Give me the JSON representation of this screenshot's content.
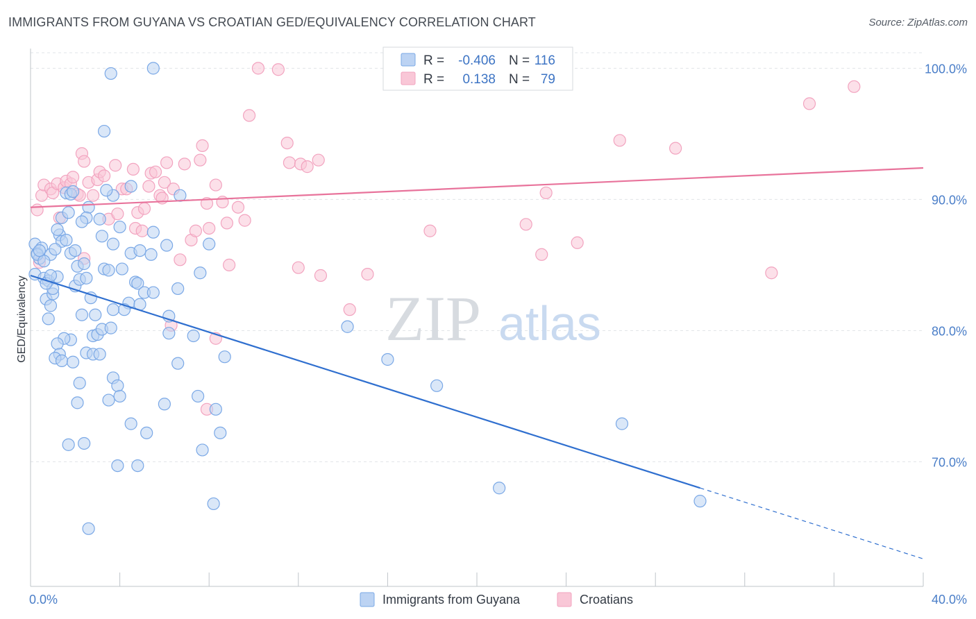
{
  "header": {
    "title": "IMMIGRANTS FROM GUYANA VS CROATIAN GED/EQUIVALENCY CORRELATION CHART",
    "source": "Source: ZipAtlas.com"
  },
  "watermark": {
    "zip": "ZIP",
    "atlas": "atlas"
  },
  "legend_box": {
    "rows": [
      {
        "r_label": "R =",
        "r_value": "-0.406",
        "n_label": "N =",
        "n_value": "116"
      },
      {
        "r_label": "R =",
        "r_value": "0.138",
        "n_label": "N =",
        "n_value": "79"
      }
    ]
  },
  "bottom_legend": {
    "items": [
      {
        "label": "Immigrants from Guyana"
      },
      {
        "label": "Croatians"
      }
    ]
  },
  "chart_data": {
    "type": "scatter",
    "title": "IMMIGRANTS FROM GUYANA VS CROATIAN GED/EQUIVALENCY CORRELATION CHART",
    "xlabel": "",
    "ylabel": "GED/Equivalency",
    "xlim": [
      0,
      40
    ],
    "ylim": [
      60.5,
      101.5
    ],
    "x_ticks": [
      "0.0%",
      "40.0%"
    ],
    "y_ticks": [
      {
        "value": 100,
        "label": "100.0%"
      },
      {
        "value": 90,
        "label": "90.0%"
      },
      {
        "value": 80,
        "label": "80.0%"
      },
      {
        "value": 70,
        "label": "70.0%"
      }
    ],
    "grid": true,
    "colors": {
      "series1": "#7aa8e6",
      "series2": "#f2a3bf",
      "trend1": "#2f6fcf",
      "trend2": "#e8739b"
    },
    "series": [
      {
        "name": "Immigrants from Guyana",
        "R": -0.406,
        "N": 116,
        "trend": {
          "x": [
            0,
            30
          ],
          "y": [
            84.2,
            68.0
          ],
          "dashed_to": [
            40,
            62.6
          ]
        },
        "points": [
          [
            0.2,
            86.6
          ],
          [
            0.3,
            85.9
          ],
          [
            0.2,
            84.3
          ],
          [
            0.5,
            86.3
          ],
          [
            0.4,
            85.5
          ],
          [
            0.6,
            84.0
          ],
          [
            0.8,
            83.8
          ],
          [
            0.3,
            85.8
          ],
          [
            0.7,
            82.4
          ],
          [
            0.9,
            81.9
          ],
          [
            0.8,
            80.9
          ],
          [
            1.0,
            82.8
          ],
          [
            1.2,
            84.1
          ],
          [
            1.0,
            83.2
          ],
          [
            0.7,
            83.6
          ],
          [
            0.9,
            85.8
          ],
          [
            1.3,
            87.3
          ],
          [
            1.4,
            86.8
          ],
          [
            1.2,
            87.7
          ],
          [
            1.4,
            88.6
          ],
          [
            1.6,
            90.5
          ],
          [
            1.8,
            90.4
          ],
          [
            1.9,
            90.6
          ],
          [
            1.7,
            89.0
          ],
          [
            1.6,
            86.9
          ],
          [
            1.8,
            85.9
          ],
          [
            2.1,
            84.9
          ],
          [
            2.4,
            85.1
          ],
          [
            2.0,
            83.4
          ],
          [
            2.2,
            83.9
          ],
          [
            2.5,
            84.0
          ],
          [
            2.7,
            82.5
          ],
          [
            2.9,
            81.2
          ],
          [
            2.3,
            81.2
          ],
          [
            2.8,
            79.6
          ],
          [
            3.0,
            79.7
          ],
          [
            3.2,
            80.1
          ],
          [
            2.5,
            78.3
          ],
          [
            2.8,
            78.2
          ],
          [
            1.8,
            79.3
          ],
          [
            1.5,
            79.4
          ],
          [
            1.2,
            79.0
          ],
          [
            1.3,
            78.2
          ],
          [
            1.1,
            77.9
          ],
          [
            1.4,
            77.7
          ],
          [
            1.9,
            77.6
          ],
          [
            2.2,
            76.0
          ],
          [
            2.1,
            74.5
          ],
          [
            1.7,
            71.3
          ],
          [
            2.4,
            71.4
          ],
          [
            3.1,
            78.2
          ],
          [
            3.7,
            76.4
          ],
          [
            3.9,
            75.8
          ],
          [
            3.5,
            74.7
          ],
          [
            4.0,
            75.0
          ],
          [
            4.5,
            72.9
          ],
          [
            5.2,
            72.2
          ],
          [
            3.9,
            69.7
          ],
          [
            4.8,
            69.7
          ],
          [
            2.6,
            64.9
          ],
          [
            3.6,
            99.6
          ],
          [
            5.5,
            100.0
          ],
          [
            3.3,
            95.2
          ],
          [
            4.5,
            91.0
          ],
          [
            3.7,
            90.3
          ],
          [
            3.4,
            90.7
          ],
          [
            2.6,
            89.4
          ],
          [
            2.5,
            88.6
          ],
          [
            3.1,
            88.5
          ],
          [
            4.0,
            87.9
          ],
          [
            3.2,
            87.2
          ],
          [
            3.7,
            86.6
          ],
          [
            4.5,
            85.9
          ],
          [
            4.9,
            86.1
          ],
          [
            5.4,
            85.8
          ],
          [
            5.5,
            87.5
          ],
          [
            6.1,
            86.5
          ],
          [
            6.7,
            90.3
          ],
          [
            3.3,
            84.7
          ],
          [
            3.5,
            84.6
          ],
          [
            4.1,
            84.7
          ],
          [
            4.7,
            83.7
          ],
          [
            4.8,
            83.6
          ],
          [
            5.1,
            82.9
          ],
          [
            5.5,
            82.9
          ],
          [
            4.4,
            82.1
          ],
          [
            4.9,
            82.0
          ],
          [
            4.2,
            81.6
          ],
          [
            3.7,
            81.6
          ],
          [
            3.6,
            80.2
          ],
          [
            6.2,
            81.1
          ],
          [
            6.2,
            79.8
          ],
          [
            7.3,
            79.6
          ],
          [
            6.6,
            83.2
          ],
          [
            7.6,
            84.4
          ],
          [
            8.0,
            86.6
          ],
          [
            6.6,
            77.5
          ],
          [
            7.5,
            75.0
          ],
          [
            6.0,
            74.4
          ],
          [
            8.3,
            74.0
          ],
          [
            8.5,
            72.2
          ],
          [
            7.7,
            70.9
          ],
          [
            8.2,
            66.8
          ],
          [
            8.7,
            78.0
          ],
          [
            14.2,
            80.3
          ],
          [
            16.0,
            77.8
          ],
          [
            18.2,
            75.8
          ],
          [
            26.5,
            72.9
          ],
          [
            21.0,
            68.0
          ],
          [
            30.0,
            67.0
          ],
          [
            0.6,
            85.3
          ],
          [
            1.1,
            86.2
          ],
          [
            0.4,
            86.1
          ],
          [
            2.0,
            86.1
          ],
          [
            2.3,
            88.3
          ],
          [
            0.9,
            84.2
          ]
        ]
      },
      {
        "name": "Croatians",
        "R": 0.138,
        "N": 79,
        "trend": {
          "x": [
            0,
            40
          ],
          "y": [
            89.4,
            92.4
          ]
        },
        "points": [
          [
            0.3,
            89.2
          ],
          [
            0.5,
            90.3
          ],
          [
            0.6,
            91.1
          ],
          [
            0.9,
            90.8
          ],
          [
            1.0,
            90.5
          ],
          [
            1.2,
            91.2
          ],
          [
            1.5,
            90.9
          ],
          [
            1.6,
            91.4
          ],
          [
            1.8,
            91.2
          ],
          [
            1.9,
            91.7
          ],
          [
            2.1,
            90.4
          ],
          [
            2.2,
            90.3
          ],
          [
            2.3,
            93.5
          ],
          [
            2.4,
            92.9
          ],
          [
            2.6,
            91.3
          ],
          [
            2.8,
            90.3
          ],
          [
            3.0,
            91.5
          ],
          [
            3.1,
            92.1
          ],
          [
            3.3,
            91.8
          ],
          [
            3.5,
            88.5
          ],
          [
            3.8,
            92.6
          ],
          [
            3.9,
            88.9
          ],
          [
            4.1,
            90.8
          ],
          [
            4.3,
            90.8
          ],
          [
            4.6,
            92.3
          ],
          [
            4.7,
            87.8
          ],
          [
            4.8,
            89.0
          ],
          [
            5.0,
            87.6
          ],
          [
            5.1,
            89.3
          ],
          [
            5.3,
            91.0
          ],
          [
            5.4,
            92.0
          ],
          [
            5.6,
            92.1
          ],
          [
            5.8,
            90.3
          ],
          [
            5.9,
            90.1
          ],
          [
            6.0,
            91.3
          ],
          [
            6.1,
            92.8
          ],
          [
            6.4,
            90.8
          ],
          [
            6.7,
            85.4
          ],
          [
            6.9,
            92.7
          ],
          [
            7.2,
            86.9
          ],
          [
            7.4,
            87.6
          ],
          [
            7.6,
            93.0
          ],
          [
            7.7,
            94.1
          ],
          [
            7.9,
            89.7
          ],
          [
            8.0,
            87.8
          ],
          [
            8.3,
            91.1
          ],
          [
            8.6,
            89.8
          ],
          [
            8.8,
            88.2
          ],
          [
            8.9,
            85.0
          ],
          [
            9.3,
            89.4
          ],
          [
            9.6,
            88.4
          ],
          [
            9.8,
            96.4
          ],
          [
            10.2,
            100.0
          ],
          [
            11.1,
            99.9
          ],
          [
            11.5,
            94.3
          ],
          [
            11.6,
            92.8
          ],
          [
            12.1,
            92.7
          ],
          [
            12.4,
            92.5
          ],
          [
            12.9,
            93.0
          ],
          [
            12.0,
            84.8
          ],
          [
            13.0,
            84.2
          ],
          [
            14.3,
            81.6
          ],
          [
            15.1,
            84.3
          ],
          [
            17.9,
            87.6
          ],
          [
            22.2,
            88.1
          ],
          [
            22.9,
            85.8
          ],
          [
            23.1,
            90.5
          ],
          [
            24.5,
            86.7
          ],
          [
            26.4,
            94.5
          ],
          [
            28.9,
            93.9
          ],
          [
            33.2,
            84.4
          ],
          [
            34.9,
            97.3
          ],
          [
            36.9,
            98.6
          ],
          [
            8.3,
            79.4
          ],
          [
            7.9,
            74.0
          ],
          [
            6.3,
            80.4
          ],
          [
            2.4,
            85.5
          ],
          [
            0.4,
            85.2
          ],
          [
            1.3,
            88.6
          ]
        ]
      }
    ]
  }
}
